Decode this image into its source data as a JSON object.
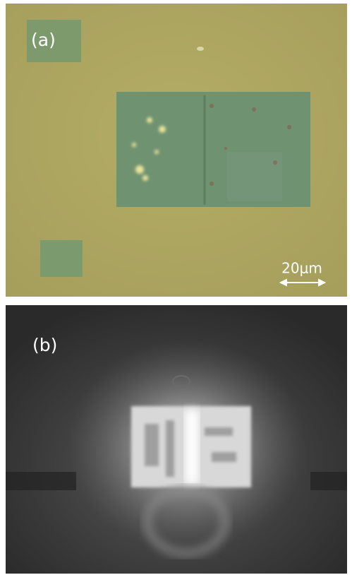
{
  "panels": [
    {
      "label": "(a)",
      "scale_bar": "20μm"
    },
    {
      "label": "(b)"
    }
  ]
}
